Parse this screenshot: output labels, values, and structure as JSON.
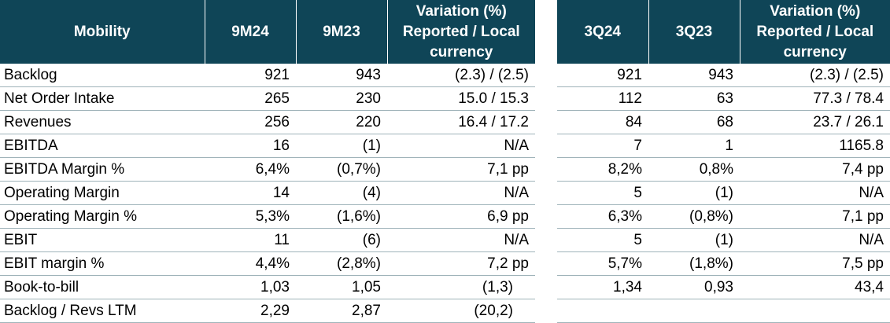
{
  "left": {
    "headers": [
      "Mobility",
      "9M24",
      "9M23",
      "Variation (%) Reported / Local currency"
    ],
    "rows": [
      [
        "Backlog",
        "921",
        "943",
        "(2.3) / (2.5)"
      ],
      [
        "Net Order Intake",
        "265",
        "230",
        "15.0 / 15.3"
      ],
      [
        "Revenues",
        "256",
        "220",
        "16.4 / 17.2"
      ],
      [
        "EBITDA",
        "16",
        "(1)",
        "N/A"
      ],
      [
        "EBITDA Margin %",
        "6,4%",
        "(0,7%)",
        "7,1 pp"
      ],
      [
        "Operating Margin",
        "14",
        "(4)",
        "N/A"
      ],
      [
        "Operating Margin %",
        "5,3%",
        "(1,6%)",
        "6,9 pp"
      ],
      [
        "EBIT",
        "11",
        "(6)",
        "N/A"
      ],
      [
        "EBIT margin %",
        "4,4%",
        "(2,8%)",
        "7,2 pp"
      ],
      [
        "Book-to-bill",
        "1,03",
        "1,05",
        "(1,3)"
      ],
      [
        "Backlog / Revs LTM",
        "2,29",
        "2,87",
        "(20,2)"
      ]
    ]
  },
  "right": {
    "headers": [
      "3Q24",
      "3Q23",
      "Variation (%) Reported / Local currency"
    ],
    "rows": [
      [
        "921",
        "943",
        "(2.3) / (2.5)"
      ],
      [
        "112",
        "63",
        "77.3 / 78.4"
      ],
      [
        "84",
        "68",
        "23.7 / 26.1"
      ],
      [
        "7",
        "1",
        "1165.8"
      ],
      [
        "8,2%",
        "0,8%",
        "7,4 pp"
      ],
      [
        "5",
        "(1)",
        "N/A"
      ],
      [
        "6,3%",
        "(0,8%)",
        "7,1 pp"
      ],
      [
        "5",
        "(1)",
        "N/A"
      ],
      [
        "5,7%",
        "(1,8%)",
        "7,5 pp"
      ],
      [
        "1,34",
        "0,93",
        "43,4"
      ],
      [
        "",
        "",
        ""
      ]
    ]
  },
  "colors": {
    "header_bg": "#0f4557",
    "header_text": "#ffffff",
    "row_rule": "#9fb3b9"
  }
}
